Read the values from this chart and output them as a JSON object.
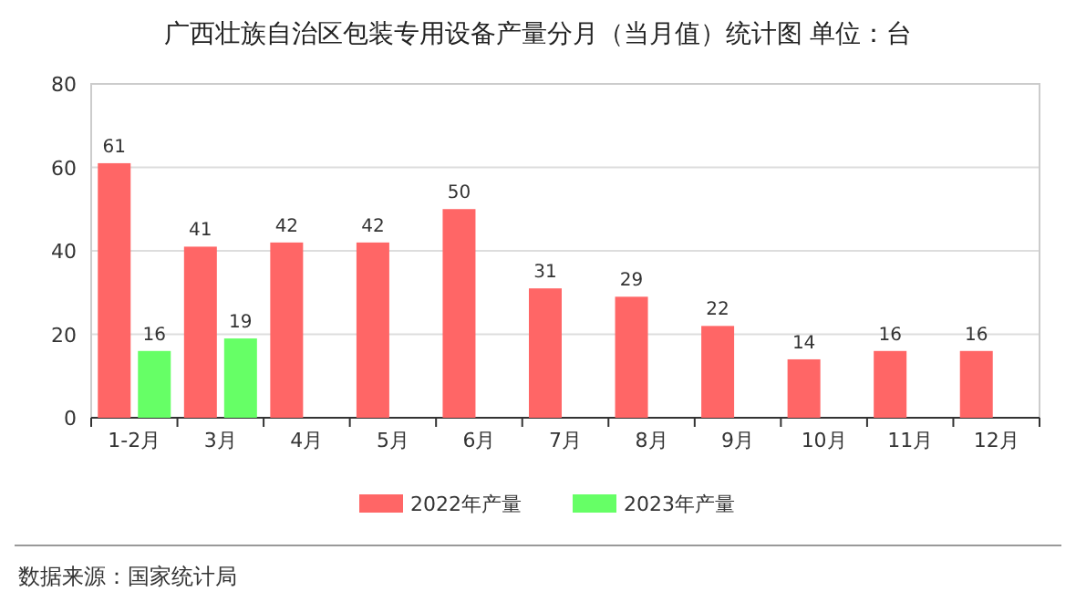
{
  "chart_data": {
    "type": "bar",
    "title": "广西壮族自治区包装专用设备产量分月（当月值）统计图 单位：台",
    "categories": [
      "1-2月",
      "3月",
      "4月",
      "5月",
      "6月",
      "7月",
      "8月",
      "9月",
      "10月",
      "11月",
      "12月"
    ],
    "series": [
      {
        "name": "2022年产量",
        "color": "#ff6666",
        "values": [
          61,
          41,
          42,
          42,
          50,
          31,
          29,
          22,
          14,
          16,
          16
        ]
      },
      {
        "name": "2023年产量",
        "color": "#66ff66",
        "values": [
          16,
          19,
          null,
          null,
          null,
          null,
          null,
          null,
          null,
          null,
          null
        ]
      }
    ],
    "ylim": [
      0,
      80
    ],
    "yticks": [
      0,
      20,
      40,
      60,
      80
    ],
    "grid": "y",
    "legend": "bottom",
    "data_labels": true,
    "annotations": [
      "数据来源：国家统计局"
    ]
  }
}
